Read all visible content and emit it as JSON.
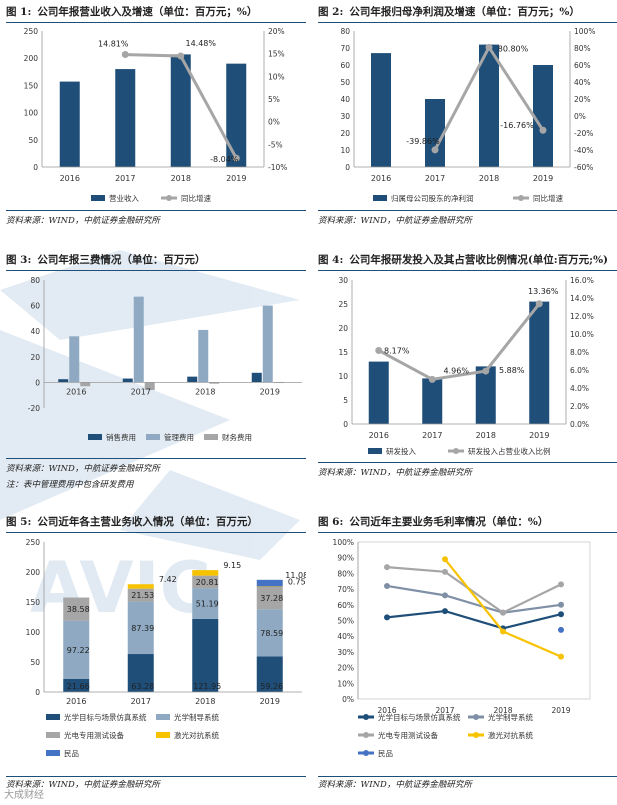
{
  "colors": {
    "navy": "#1f4e79",
    "gray": "#a6a6a6",
    "lightblue": "#8ea9c1",
    "slate": "#7f8fa6",
    "yellow": "#f7c200",
    "blue": "#4472c4",
    "darkgray": "#808080",
    "watermark": "#dce7f1"
  },
  "watermark": {
    "text": "AVIC",
    "footer": "大成财经"
  },
  "charts": [
    {
      "num": "图 1:",
      "title": "公司年报营业收入及增速（单位：百万元；%）",
      "source": "资料来源：WIND，中航证券金融研究所",
      "note": ""
    },
    {
      "num": "图 2:",
      "title": "公司年报归母净利润及增速（单位：百万元；%）",
      "source": "资料来源：WIND，中航证券金融研究所",
      "note": ""
    },
    {
      "num": "图 3:",
      "title": "公司年报三费情况（单位：百万元）",
      "source": "资料来源：WIND，中航证券金融研究所",
      "note": "注：表中管理费用中包含研发费用"
    },
    {
      "num": "图 4:",
      "title": "公司年报研发投入及其占营收比例情况(单位:百万元;%)",
      "source": "资料来源：WIND，中航证券金融研究所",
      "note": ""
    },
    {
      "num": "图 5:",
      "title": "公司近年各主营业务收入情况（单位：百万元）",
      "source": "资料来源：WIND，中航证券金融研究所",
      "note": ""
    },
    {
      "num": "图 6:",
      "title": "公司近年主要业务毛利率情况（单位：%）",
      "source": "资料来源：WIND，中航证券金融研究所",
      "note": ""
    }
  ],
  "chart_data": [
    {
      "type": "bar+line",
      "categories": [
        "2016",
        "2017",
        "2018",
        "2019"
      ],
      "series": [
        {
          "name": "营业收入",
          "kind": "bar",
          "axis": "left",
          "values": [
            157,
            180,
            207,
            190
          ]
        },
        {
          "name": "同比增速",
          "kind": "line",
          "axis": "right",
          "values": [
            null,
            14.81,
            14.48,
            -8.04
          ]
        }
      ],
      "data_labels": [
        "14.81%",
        "14.48%",
        "-8.04%"
      ],
      "ylim_left": [
        0,
        250
      ],
      "yticks_left": [
        "0",
        "50",
        "100",
        "150",
        "200",
        "250"
      ],
      "ylim_right": [
        -10,
        20
      ],
      "yticks_right": [
        "-10%",
        "-5%",
        "0%",
        "5%",
        "10%",
        "15%",
        "20%"
      ]
    },
    {
      "type": "bar+line",
      "categories": [
        "2016",
        "2017",
        "2018",
        "2019"
      ],
      "series": [
        {
          "name": "归属母公司股东的净利润",
          "kind": "bar",
          "axis": "left",
          "values": [
            67,
            40,
            72,
            60
          ]
        },
        {
          "name": "同比增速",
          "kind": "line",
          "axis": "right",
          "values": [
            null,
            -39.86,
            80.8,
            -16.76
          ]
        }
      ],
      "data_labels": [
        "-39.86%",
        "80.80%",
        "-16.76%"
      ],
      "ylim_left": [
        0,
        80
      ],
      "yticks_left": [
        "0",
        "10",
        "20",
        "30",
        "40",
        "50",
        "60",
        "70",
        "80"
      ],
      "ylim_right": [
        -60,
        100
      ],
      "yticks_right": [
        "-60%",
        "-40%",
        "-20%",
        "0%",
        "20%",
        "40%",
        "60%",
        "80%",
        "100%"
      ]
    },
    {
      "type": "bar",
      "categories": [
        "2016",
        "2017",
        "2018",
        "2019"
      ],
      "series": [
        {
          "name": "销售费用",
          "values": [
            2.5,
            3,
            4.5,
            7.5
          ]
        },
        {
          "name": "管理费用",
          "values": [
            36,
            67,
            41,
            60
          ]
        },
        {
          "name": "财务费用",
          "values": [
            -3,
            -6,
            -1,
            -0.5
          ]
        }
      ],
      "ylim": [
        -20,
        80
      ],
      "yticks": [
        "-20",
        "0",
        "20",
        "40",
        "60",
        "80"
      ]
    },
    {
      "type": "bar+line",
      "categories": [
        "2016",
        "2017",
        "2018",
        "2019"
      ],
      "series": [
        {
          "name": "研发投入",
          "kind": "bar",
          "axis": "left",
          "values": [
            13,
            9.5,
            12,
            25.5
          ]
        },
        {
          "name": "研发投入占营业收入比例",
          "kind": "line",
          "axis": "right",
          "values": [
            8.17,
            4.96,
            5.88,
            13.36
          ]
        }
      ],
      "data_labels": [
        "8.17%",
        "4.96%",
        "5.88%",
        "13.36%"
      ],
      "ylim_left": [
        0,
        30
      ],
      "yticks_left": [
        "0",
        "5",
        "10",
        "15",
        "20",
        "25",
        "30"
      ],
      "ylim_right": [
        0,
        16
      ],
      "yticks_right": [
        "0.0%",
        "2.0%",
        "4.0%",
        "6.0%",
        "8.0%",
        "10.0%",
        "12.0%",
        "14.0%",
        "16.0%"
      ]
    },
    {
      "type": "stacked-bar",
      "categories": [
        "2016",
        "2017",
        "2018",
        "2019"
      ],
      "series": [
        {
          "name": "光学目标与场景仿真系统",
          "values": [
            21.66,
            63.28,
            121.95,
            59.26
          ]
        },
        {
          "name": "光学制导系统",
          "values": [
            97.22,
            87.39,
            51.19,
            78.59
          ]
        },
        {
          "name": "光电专用测试设备",
          "values": [
            38.58,
            21.53,
            20.81,
            37.28
          ]
        },
        {
          "name": "激光对抗系统",
          "values": [
            null,
            7.42,
            9.15,
            0.75
          ]
        },
        {
          "name": "民品",
          "values": [
            null,
            null,
            null,
            11.08
          ]
        }
      ],
      "ylim": [
        0,
        250
      ],
      "yticks": [
        "0",
        "50",
        "100",
        "150",
        "200",
        "250"
      ]
    },
    {
      "type": "line",
      "categories": [
        "2016",
        "2017",
        "2018",
        "2019"
      ],
      "series": [
        {
          "name": "光学目标与场景仿真系统",
          "values": [
            52,
            56,
            45,
            54
          ]
        },
        {
          "name": "光学制导系统",
          "values": [
            72,
            66,
            55,
            60
          ]
        },
        {
          "name": "光电专用测试设备",
          "values": [
            84,
            81,
            55,
            73
          ]
        },
        {
          "name": "激光对抗系统",
          "values": [
            null,
            89,
            43,
            27
          ]
        },
        {
          "name": "民品",
          "values": [
            null,
            null,
            null,
            44
          ]
        }
      ],
      "ylim": [
        0,
        100
      ],
      "yticks": [
        "0%",
        "10%",
        "20%",
        "30%",
        "40%",
        "50%",
        "60%",
        "70%",
        "80%",
        "90%",
        "100%"
      ]
    }
  ]
}
